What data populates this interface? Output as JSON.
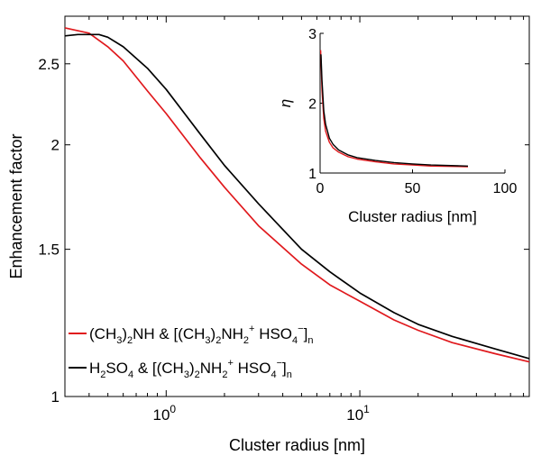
{
  "chart_data": [
    {
      "type": "line",
      "xlabel": "Cluster radius [nm]",
      "ylabel": "Enhancement factor",
      "xscale": "log",
      "yscale": "log",
      "xlim": [
        0.3,
        75
      ],
      "ylim": [
        1,
        2.85
      ],
      "x_ticks": [
        {
          "value": 1,
          "mant": "10",
          "exp": "0"
        },
        {
          "value": 10,
          "mant": "10",
          "exp": "1"
        }
      ],
      "y_ticks": [
        {
          "value": 1,
          "label": "1"
        },
        {
          "value": 1.5,
          "label": "1.5"
        },
        {
          "value": 2,
          "label": "2"
        },
        {
          "value": 2.5,
          "label": "2.5"
        }
      ],
      "legend_position": "bottom-left",
      "series": [
        {
          "color": "#e0191d",
          "legend_parts": [
            [
              "(CH",
              ""
            ],
            [
              "3",
              "sub"
            ],
            [
              ")",
              ""
            ],
            [
              "2",
              "sub"
            ],
            [
              "NH & [(CH",
              ""
            ],
            [
              "3",
              "sub"
            ],
            [
              ")",
              ""
            ],
            [
              "2",
              "sub"
            ],
            [
              "NH",
              ""
            ],
            [
              "2",
              "sub"
            ],
            [
              "+",
              "sup"
            ],
            [
              " HSO",
              ""
            ],
            [
              "4",
              "sub"
            ],
            [
              "−",
              "sup"
            ],
            [
              "]",
              ""
            ],
            [
              "n",
              "sub"
            ]
          ],
          "x": [
            0.3,
            0.4,
            0.5,
            0.6,
            0.8,
            1.0,
            1.5,
            2,
            3,
            5,
            7,
            10,
            15,
            20,
            30,
            50,
            75
          ],
          "y": [
            2.76,
            2.72,
            2.62,
            2.52,
            2.32,
            2.18,
            1.93,
            1.78,
            1.6,
            1.44,
            1.36,
            1.3,
            1.235,
            1.2,
            1.16,
            1.125,
            1.1
          ]
        },
        {
          "color": "#000000",
          "legend_parts": [
            [
              "H",
              ""
            ],
            [
              "2",
              "sub"
            ],
            [
              "SO",
              ""
            ],
            [
              "4",
              "sub"
            ],
            [
              " & [(CH",
              ""
            ],
            [
              "3",
              "sub"
            ],
            [
              ")",
              ""
            ],
            [
              "2",
              "sub"
            ],
            [
              "NH",
              ""
            ],
            [
              "2",
              "sub"
            ],
            [
              "+",
              "sup"
            ],
            [
              " HSO",
              ""
            ],
            [
              "4",
              "sub"
            ],
            [
              "−",
              "sup"
            ],
            [
              "]",
              ""
            ],
            [
              "n",
              "sub"
            ]
          ],
          "x": [
            0.3,
            0.35,
            0.4,
            0.45,
            0.5,
            0.6,
            0.8,
            1.0,
            1.5,
            2,
            3,
            5,
            7,
            10,
            15,
            20,
            30,
            50,
            75
          ],
          "y": [
            2.7,
            2.71,
            2.71,
            2.71,
            2.69,
            2.62,
            2.47,
            2.33,
            2.06,
            1.89,
            1.7,
            1.5,
            1.41,
            1.33,
            1.26,
            1.22,
            1.18,
            1.14,
            1.11
          ]
        }
      ]
    },
    {
      "type": "line",
      "role": "inset",
      "xlabel": "Cluster radius [nm]",
      "ylabel": "η",
      "xlim": [
        0,
        100
      ],
      "ylim": [
        1,
        3
      ],
      "x_ticks": [
        {
          "value": 0,
          "label": "0"
        },
        {
          "value": 50,
          "label": "50"
        },
        {
          "value": 100,
          "label": "100"
        }
      ],
      "y_ticks": [
        {
          "value": 1,
          "label": "1"
        },
        {
          "value": 2,
          "label": "2"
        },
        {
          "value": 3,
          "label": "3"
        }
      ],
      "series": [
        {
          "color": "#e0191d",
          "x": [
            0.3,
            0.5,
            1,
            2,
            3,
            5,
            7,
            10,
            15,
            20,
            30,
            40,
            50,
            60,
            80
          ],
          "y": [
            2.76,
            2.62,
            2.18,
            1.78,
            1.6,
            1.44,
            1.36,
            1.3,
            1.235,
            1.2,
            1.16,
            1.13,
            1.115,
            1.1,
            1.09
          ]
        },
        {
          "color": "#000000",
          "x": [
            0.3,
            0.5,
            1,
            2,
            3,
            5,
            7,
            10,
            15,
            20,
            30,
            40,
            50,
            60,
            80
          ],
          "y": [
            2.7,
            2.69,
            2.33,
            1.89,
            1.7,
            1.5,
            1.41,
            1.33,
            1.26,
            1.22,
            1.18,
            1.15,
            1.13,
            1.115,
            1.1
          ]
        }
      ]
    }
  ]
}
